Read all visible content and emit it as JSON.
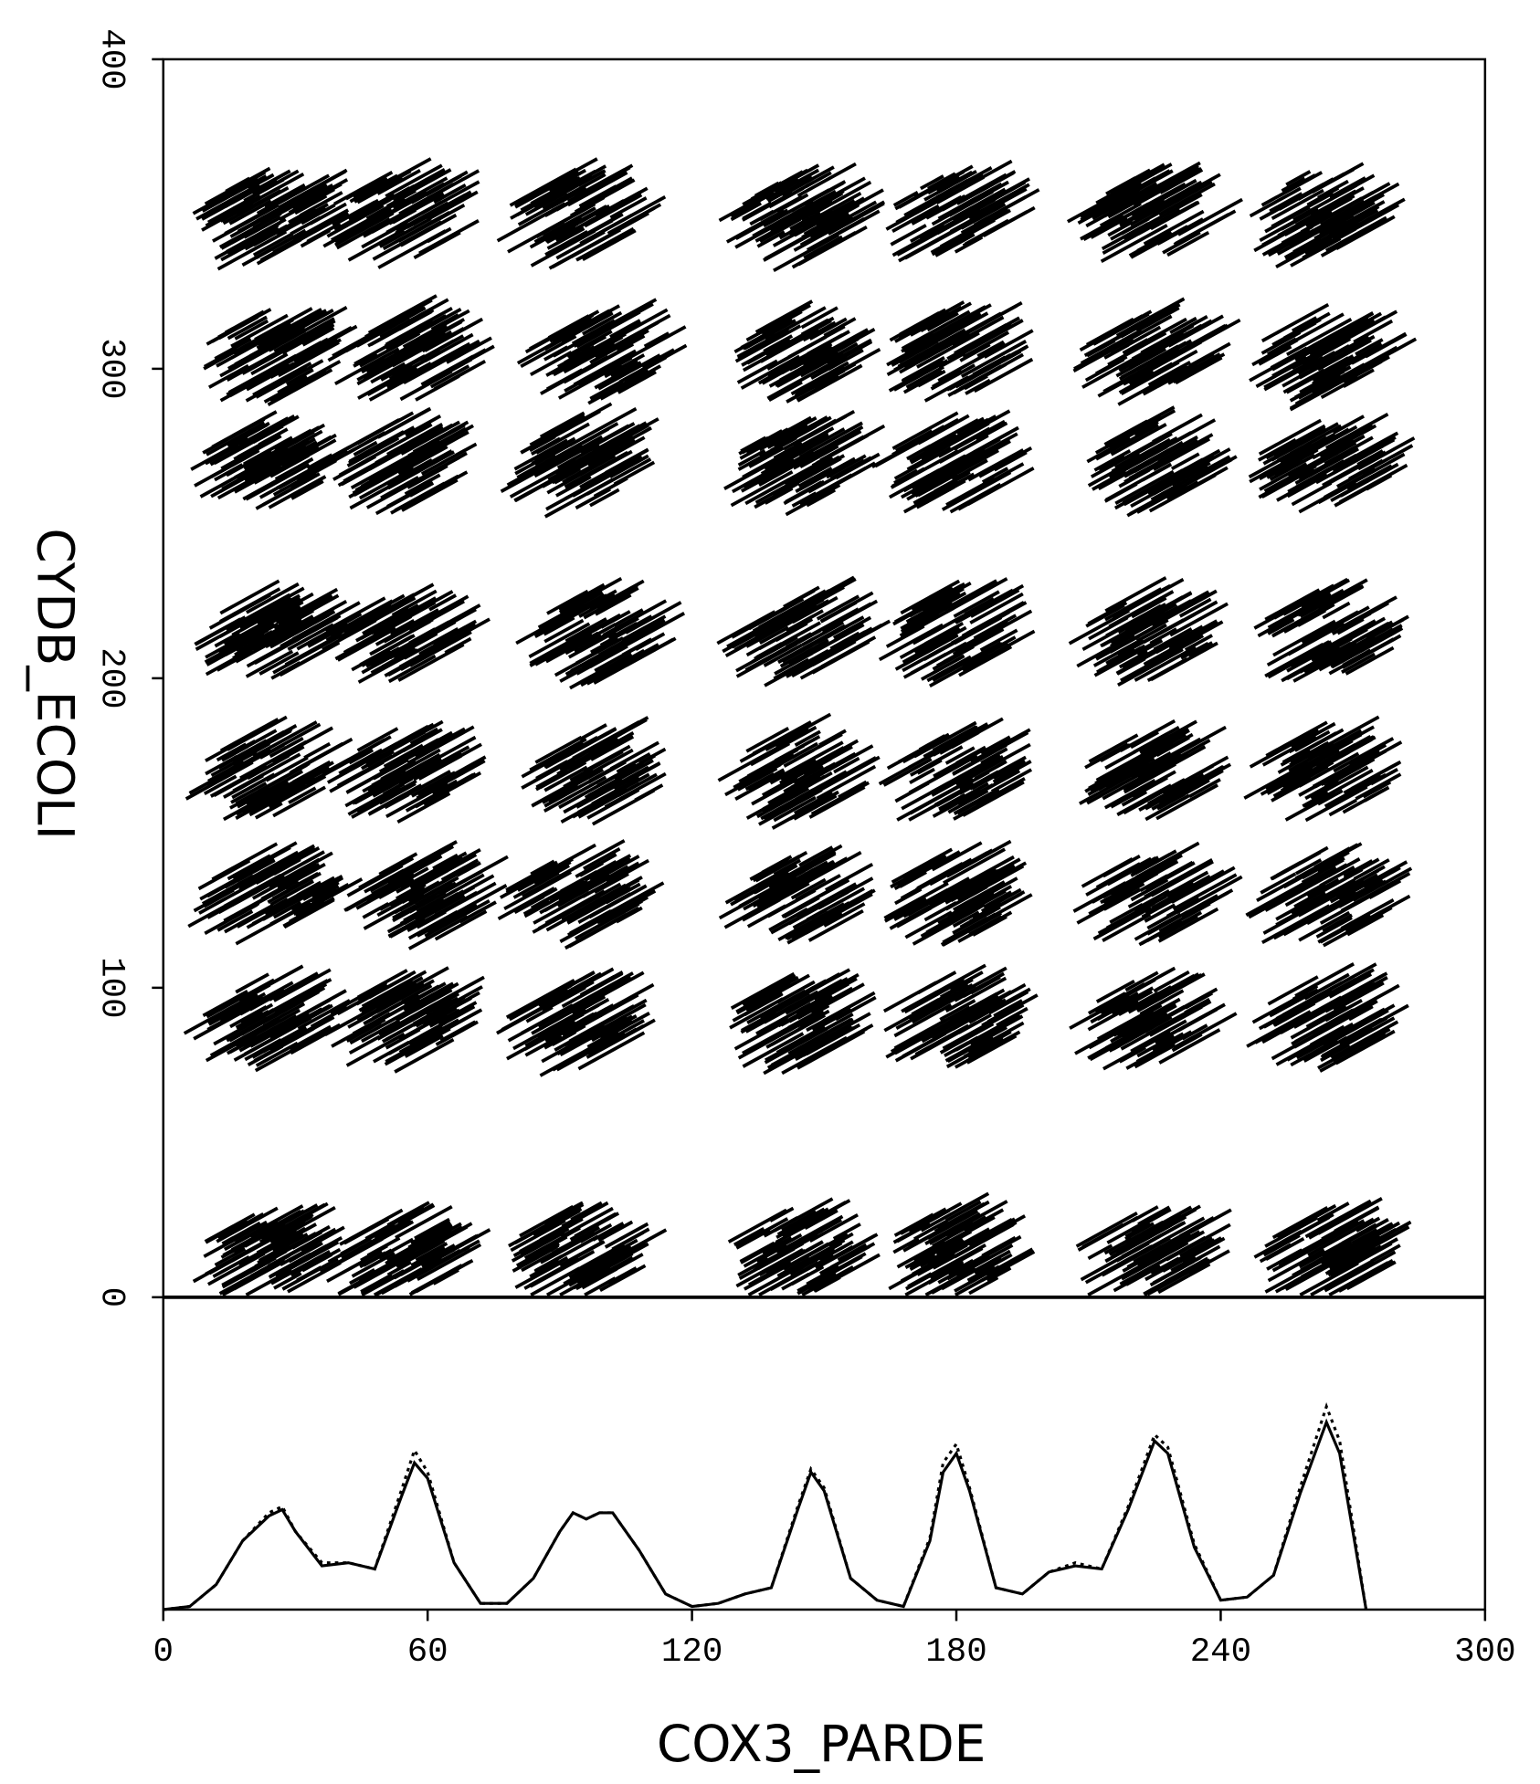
{
  "chart_data": {
    "type": "dotplot",
    "xlabel": "COX3_PARDE",
    "ylabel": "CYDB_ECOLI",
    "xlim": [
      0,
      300
    ],
    "xticks": [
      0,
      60,
      120,
      180,
      240,
      300
    ],
    "ylim": [
      0,
      400
    ],
    "yticks": [
      0,
      100,
      200,
      300,
      400
    ],
    "points": {
      "x": [
        25,
        55,
        95,
        145,
        180,
        225,
        262,
        25,
        57,
        100,
        145,
        180,
        225,
        265,
        25,
        55,
        95,
        145,
        180,
        225,
        265,
        25,
        55,
        100,
        145,
        180,
        225,
        265,
        25,
        55,
        100,
        145,
        180,
        225,
        265,
        25,
        60,
        95,
        145,
        180,
        225,
        265,
        25,
        55,
        95,
        145,
        180,
        225,
        265,
        25,
        55,
        95,
        145,
        180,
        225,
        265
      ],
      "y": [
        350,
        350,
        350,
        350,
        350,
        350,
        350,
        305,
        305,
        305,
        305,
        305,
        305,
        305,
        270,
        270,
        270,
        270,
        270,
        270,
        270,
        215,
        215,
        215,
        215,
        215,
        215,
        215,
        170,
        170,
        170,
        170,
        170,
        170,
        170,
        130,
        130,
        130,
        130,
        130,
        130,
        130,
        90,
        90,
        90,
        90,
        90,
        90,
        90,
        15,
        15,
        15,
        15,
        15,
        15,
        15
      ]
    },
    "profile": {
      "ylim": [
        0,
        100
      ],
      "x": [
        0,
        6,
        12,
        18,
        24,
        27,
        30,
        36,
        42,
        48,
        54,
        57,
        60,
        66,
        72,
        78,
        84,
        90,
        93,
        96,
        99,
        102,
        108,
        114,
        120,
        126,
        132,
        138,
        144,
        147,
        150,
        156,
        162,
        168,
        174,
        177,
        180,
        183,
        189,
        195,
        201,
        207,
        213,
        219,
        225,
        228,
        234,
        240,
        246,
        252,
        258,
        264,
        267,
        270,
        273
      ],
      "series": [
        {
          "name": "solid",
          "style": "solid",
          "values": [
            0,
            1,
            8,
            22,
            30,
            32,
            25,
            14,
            15,
            13,
            36,
            47,
            42,
            15,
            2,
            2,
            10,
            25,
            31,
            29,
            31,
            31,
            19,
            5,
            1,
            2,
            5,
            7,
            32,
            44,
            38,
            10,
            3,
            1,
            22,
            44,
            50,
            38,
            7,
            5,
            12,
            14,
            13,
            32,
            54,
            50,
            20,
            3,
            4,
            11,
            37,
            60,
            50,
            25,
            0
          ]
        },
        {
          "name": "dotted",
          "style": "dotted",
          "values": [
            0,
            1,
            8,
            22,
            31,
            33,
            25,
            15,
            15,
            13,
            38,
            51,
            44,
            15,
            2,
            2,
            10,
            25,
            31,
            29,
            31,
            31,
            19,
            5,
            1,
            2,
            5,
            7,
            33,
            45,
            39,
            10,
            3,
            1,
            23,
            47,
            53,
            39,
            7,
            5,
            12,
            15,
            13,
            33,
            56,
            52,
            21,
            3,
            4,
            11,
            39,
            65,
            54,
            27,
            0
          ]
        }
      ]
    }
  }
}
